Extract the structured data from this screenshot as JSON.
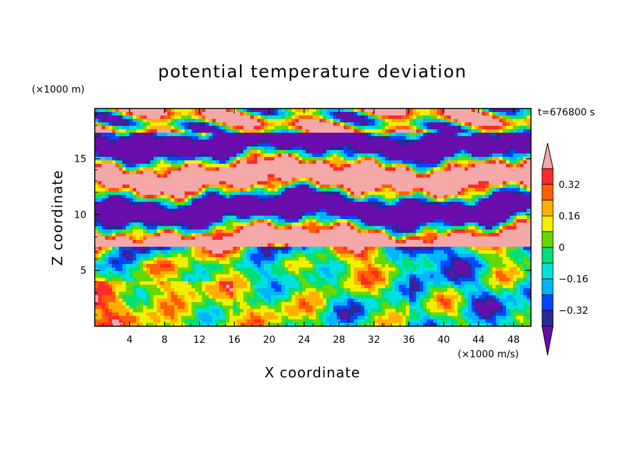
{
  "chart_data": {
    "type": "heatmap",
    "title": "potential temperature deviation",
    "xlabel": "X coordinate",
    "ylabel": "Z coordinate",
    "x_unit_label": "(×1000 m/s)",
    "y_unit_label": "(×1000 m)",
    "time_label": "t=676800 s",
    "xlim": [
      0,
      50
    ],
    "ylim": [
      0,
      19.5
    ],
    "x_ticks": [
      "4",
      "8",
      "12",
      "16",
      "20",
      "24",
      "28",
      "32",
      "36",
      "40",
      "44",
      "48"
    ],
    "x_tick_values": [
      4,
      8,
      12,
      16,
      20,
      24,
      28,
      32,
      36,
      40,
      44,
      48
    ],
    "y_ticks": [
      "5",
      "10",
      "15"
    ],
    "y_tick_values": [
      5,
      10,
      15
    ],
    "colorbar": {
      "levels": [
        -0.4,
        -0.32,
        -0.24,
        -0.16,
        -0.08,
        0,
        0.08,
        0.16,
        0.24,
        0.32,
        0.4
      ],
      "tick_labels": [
        "0.32",
        "0.16",
        "0",
        "−0.16",
        "−0.32"
      ],
      "tick_values": [
        0.32,
        0.16,
        0,
        -0.16,
        -0.32
      ],
      "colors": [
        "#6a0dad",
        "#2a2a96",
        "#0048ff",
        "#00b4ff",
        "#00e0e0",
        "#00e07a",
        "#66d800",
        "#f0f000",
        "#ffb000",
        "#ff6000",
        "#ff2a2a",
        "#f4a8a8"
      ],
      "extend": "both"
    },
    "bands": [
      {
        "z_min": 17.5,
        "z_max": 19.5,
        "pattern": "alternating warm/cold blobs"
      },
      {
        "z_min": 7,
        "z_max": 17.5,
        "pattern": "horizontal layers of +0.4 and -0.4"
      },
      {
        "z_min": 0,
        "z_max": 7,
        "pattern": "convective plumes, mixed values"
      }
    ]
  }
}
